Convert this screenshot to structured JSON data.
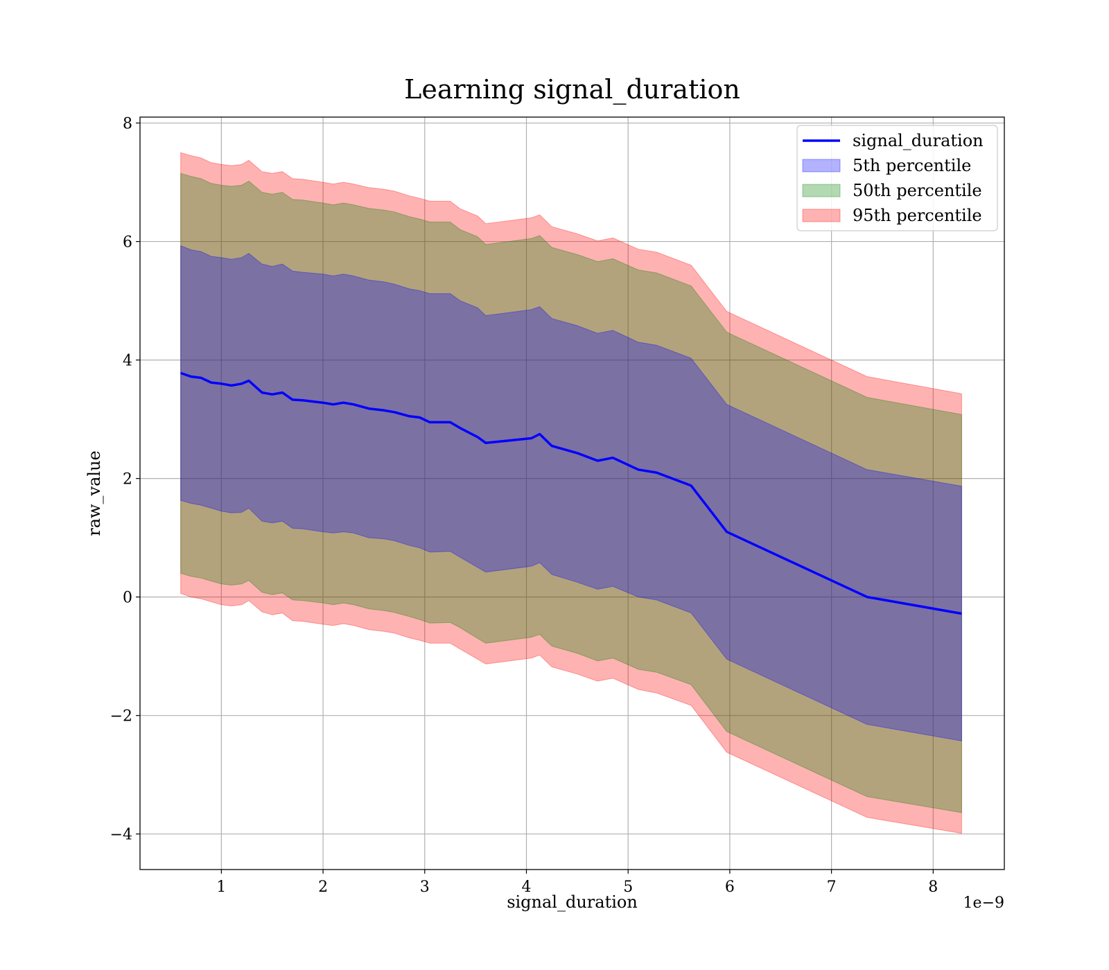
{
  "chart_data": {
    "type": "area",
    "title": "Learning signal_duration",
    "xlabel": "signal_duration",
    "ylabel": "raw_value",
    "x_offset_label": "1e−9",
    "xlim": [
      0.2,
      8.7
    ],
    "ylim": [
      -4.6,
      8.1
    ],
    "x_ticks": [
      1,
      2,
      3,
      4,
      5,
      6,
      7,
      8
    ],
    "x_tick_labels": [
      "1",
      "2",
      "3",
      "4",
      "5",
      "6",
      "7",
      "8"
    ],
    "y_ticks": [
      -4,
      -2,
      0,
      2,
      4,
      6,
      8
    ],
    "y_tick_labels": [
      "−4",
      "−2",
      "0",
      "2",
      "4",
      "6",
      "8"
    ],
    "grid": true,
    "legend_position": "top-right",
    "x": [
      0.6,
      0.7,
      0.8,
      0.9,
      1.0,
      1.1,
      1.2,
      1.27,
      1.4,
      1.5,
      1.6,
      1.7,
      1.8,
      2.0,
      2.1,
      2.2,
      2.3,
      2.45,
      2.6,
      2.7,
      2.85,
      2.95,
      3.05,
      3.25,
      3.35,
      3.52,
      3.6,
      4.05,
      4.13,
      4.25,
      4.5,
      4.7,
      4.85,
      5.1,
      5.28,
      5.62,
      5.97,
      7.35,
      8.28
    ],
    "series": [
      {
        "name": "signal_duration",
        "color": "#0000ff",
        "values": [
          3.78,
          3.72,
          3.7,
          3.62,
          3.6,
          3.57,
          3.6,
          3.65,
          3.45,
          3.42,
          3.45,
          3.33,
          3.32,
          3.28,
          3.25,
          3.28,
          3.25,
          3.18,
          3.15,
          3.12,
          3.05,
          3.03,
          2.95,
          2.95,
          2.85,
          2.7,
          2.6,
          2.68,
          2.75,
          2.55,
          2.43,
          2.3,
          2.35,
          2.15,
          2.1,
          1.88,
          1.1,
          0.0,
          -0.28
        ]
      },
      {
        "name": "5th percentile",
        "color": "#0000ff",
        "lower": [
          1.63,
          1.58,
          1.55,
          1.5,
          1.45,
          1.42,
          1.43,
          1.5,
          1.28,
          1.25,
          1.28,
          1.16,
          1.15,
          1.1,
          1.08,
          1.1,
          1.08,
          1.0,
          0.98,
          0.95,
          0.87,
          0.83,
          0.76,
          0.77,
          0.67,
          0.5,
          0.42,
          0.52,
          0.58,
          0.38,
          0.25,
          0.13,
          0.18,
          0.0,
          -0.05,
          -0.27,
          -1.05,
          -2.15,
          -2.43
        ],
        "upper": [
          5.93,
          5.86,
          5.83,
          5.75,
          5.73,
          5.7,
          5.73,
          5.8,
          5.62,
          5.58,
          5.62,
          5.5,
          5.48,
          5.45,
          5.42,
          5.45,
          5.42,
          5.35,
          5.32,
          5.28,
          5.2,
          5.17,
          5.12,
          5.12,
          5.0,
          4.88,
          4.75,
          4.85,
          4.9,
          4.7,
          4.58,
          4.45,
          4.5,
          4.3,
          4.25,
          4.03,
          3.25,
          2.15,
          1.87
        ]
      },
      {
        "name": "50th percentile",
        "color": "#008000",
        "lower": [
          0.4,
          0.35,
          0.32,
          0.27,
          0.22,
          0.2,
          0.22,
          0.28,
          0.08,
          0.04,
          0.07,
          -0.05,
          -0.06,
          -0.1,
          -0.13,
          -0.1,
          -0.13,
          -0.2,
          -0.23,
          -0.26,
          -0.33,
          -0.38,
          -0.44,
          -0.43,
          -0.52,
          -0.7,
          -0.78,
          -0.68,
          -0.63,
          -0.83,
          -0.95,
          -1.08,
          -1.03,
          -1.22,
          -1.27,
          -1.48,
          -2.27,
          -3.37,
          -3.64
        ],
        "upper": [
          7.15,
          7.1,
          7.06,
          6.98,
          6.95,
          6.93,
          6.95,
          7.02,
          6.83,
          6.8,
          6.83,
          6.71,
          6.7,
          6.65,
          6.62,
          6.65,
          6.62,
          6.56,
          6.53,
          6.5,
          6.42,
          6.38,
          6.33,
          6.33,
          6.2,
          6.08,
          5.95,
          6.05,
          6.1,
          5.9,
          5.78,
          5.66,
          5.71,
          5.52,
          5.47,
          5.25,
          4.47,
          3.37,
          3.08
        ]
      },
      {
        "name": "95th percentile",
        "color": "#ff0000",
        "lower": [
          0.06,
          -0.0,
          -0.03,
          -0.08,
          -0.13,
          -0.15,
          -0.13,
          -0.06,
          -0.25,
          -0.3,
          -0.27,
          -0.4,
          -0.41,
          -0.46,
          -0.48,
          -0.45,
          -0.48,
          -0.55,
          -0.58,
          -0.61,
          -0.69,
          -0.73,
          -0.78,
          -0.78,
          -0.88,
          -1.05,
          -1.13,
          -1.03,
          -0.98,
          -1.18,
          -1.3,
          -1.42,
          -1.37,
          -1.56,
          -1.62,
          -1.83,
          -2.62,
          -3.72,
          -3.99
        ],
        "upper": [
          7.5,
          7.45,
          7.41,
          7.33,
          7.3,
          7.28,
          7.3,
          7.37,
          7.18,
          7.15,
          7.18,
          7.06,
          7.05,
          7.0,
          6.97,
          7.0,
          6.97,
          6.91,
          6.88,
          6.85,
          6.77,
          6.73,
          6.68,
          6.68,
          6.55,
          6.43,
          6.3,
          6.4,
          6.45,
          6.25,
          6.13,
          6.01,
          6.06,
          5.87,
          5.82,
          5.6,
          4.82,
          3.72,
          3.43
        ]
      }
    ]
  }
}
